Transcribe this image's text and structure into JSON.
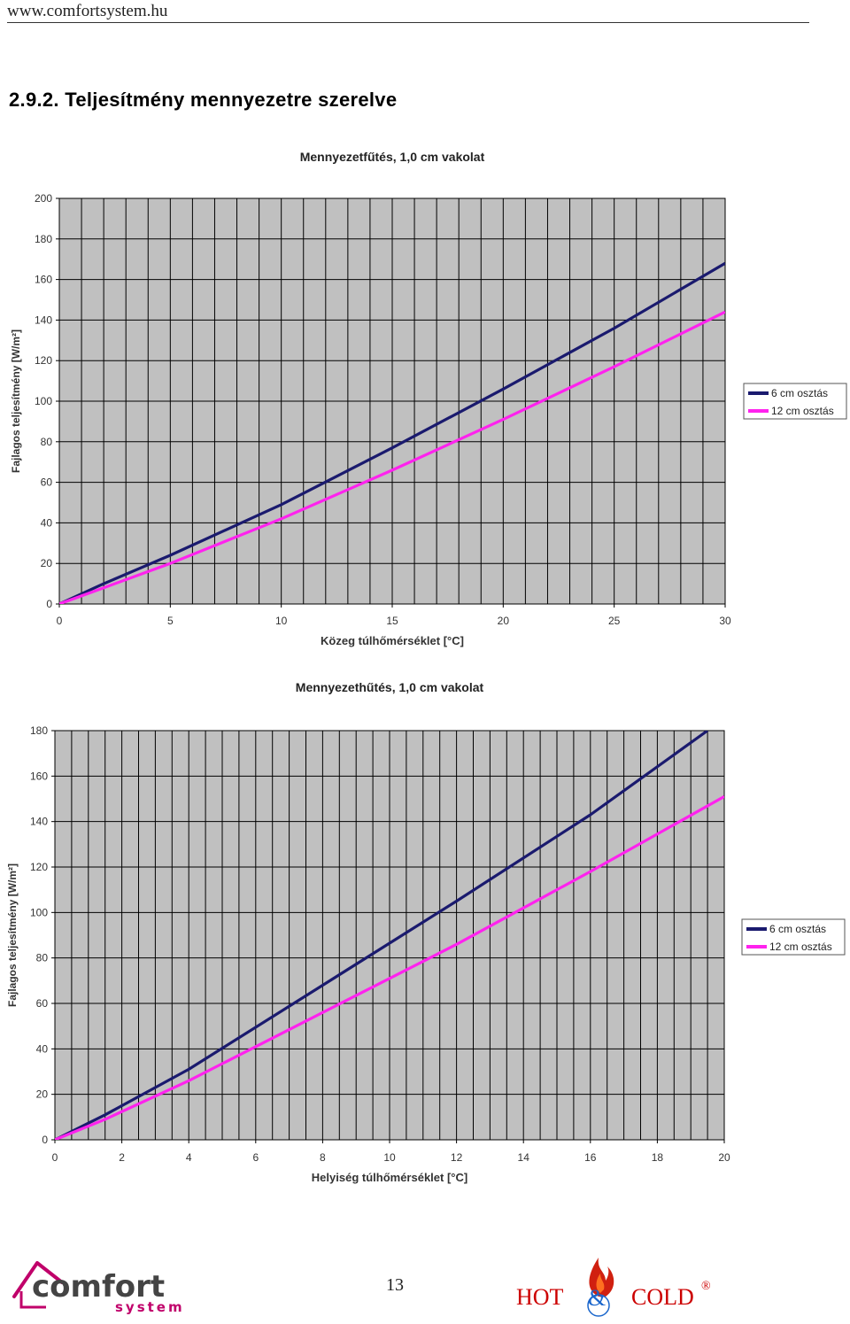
{
  "header": {
    "url": "www.comfortsystem.hu"
  },
  "section_title": "2.9.2. Teljesítmény mennyezetre szerelve",
  "colors": {
    "series_6cm": "#1a1a6e",
    "series_12cm": "#ff22ee",
    "plot_bg": "#c0c0c0",
    "grid": "#000000"
  },
  "chart_data": [
    {
      "type": "line",
      "title": "Mennyezetfűtés, 1,0 cm vakolat",
      "xlabel": "Közeg túlhőmérséklet [°C]",
      "ylabel": "Fajlagos teljesítmény [W/m²]",
      "xlim": [
        0,
        30
      ],
      "ylim": [
        0,
        200
      ],
      "xticks": [
        "0",
        "5",
        "10",
        "15",
        "20",
        "25",
        "30"
      ],
      "yticks": [
        "0",
        "20",
        "40",
        "60",
        "80",
        "100",
        "120",
        "140",
        "160",
        "180",
        "200"
      ],
      "grid": true,
      "legend_position": "right",
      "series": [
        {
          "name": "6 cm osztás",
          "x": [
            0,
            2,
            5,
            10,
            15,
            20,
            25,
            30
          ],
          "y": [
            0,
            10,
            24,
            49,
            77,
            106,
            136,
            168
          ]
        },
        {
          "name": "12 cm osztás",
          "x": [
            0,
            2,
            5,
            10,
            15,
            20,
            25,
            30
          ],
          "y": [
            0,
            8,
            20,
            42,
            66,
            91,
            117,
            144
          ]
        }
      ]
    },
    {
      "type": "line",
      "title": "Mennyezethűtés, 1,0 cm vakolat",
      "xlabel": "Helyiség túlhőmérséklet [°C]",
      "ylabel": "Fajlagos teljesítmény [W/m²]",
      "xlim": [
        0,
        20
      ],
      "ylim": [
        0,
        180
      ],
      "xticks": [
        "0",
        "2",
        "4",
        "6",
        "8",
        "10",
        "12",
        "14",
        "16",
        "18",
        "20"
      ],
      "yticks": [
        "0",
        "20",
        "40",
        "60",
        "80",
        "100",
        "120",
        "140",
        "160",
        "180"
      ],
      "grid": true,
      "legend_position": "right",
      "series": [
        {
          "name": "6 cm osztás",
          "x": [
            0,
            1.5,
            4,
            8,
            12,
            16,
            19.5
          ],
          "y": [
            0,
            11,
            31,
            68,
            105,
            143,
            180
          ]
        },
        {
          "name": "12 cm osztás",
          "x": [
            0,
            1.5,
            4,
            8,
            12,
            16,
            20
          ],
          "y": [
            0,
            9,
            26,
            56,
            86,
            118,
            151
          ]
        }
      ]
    }
  ],
  "footer": {
    "page_number": "13",
    "logo_left_main": "comfort",
    "logo_left_sub": "system",
    "logo_right_hot": "HOT",
    "logo_right_amp": "&",
    "logo_right_cold": "COLD",
    "logo_right_reg": "®"
  }
}
